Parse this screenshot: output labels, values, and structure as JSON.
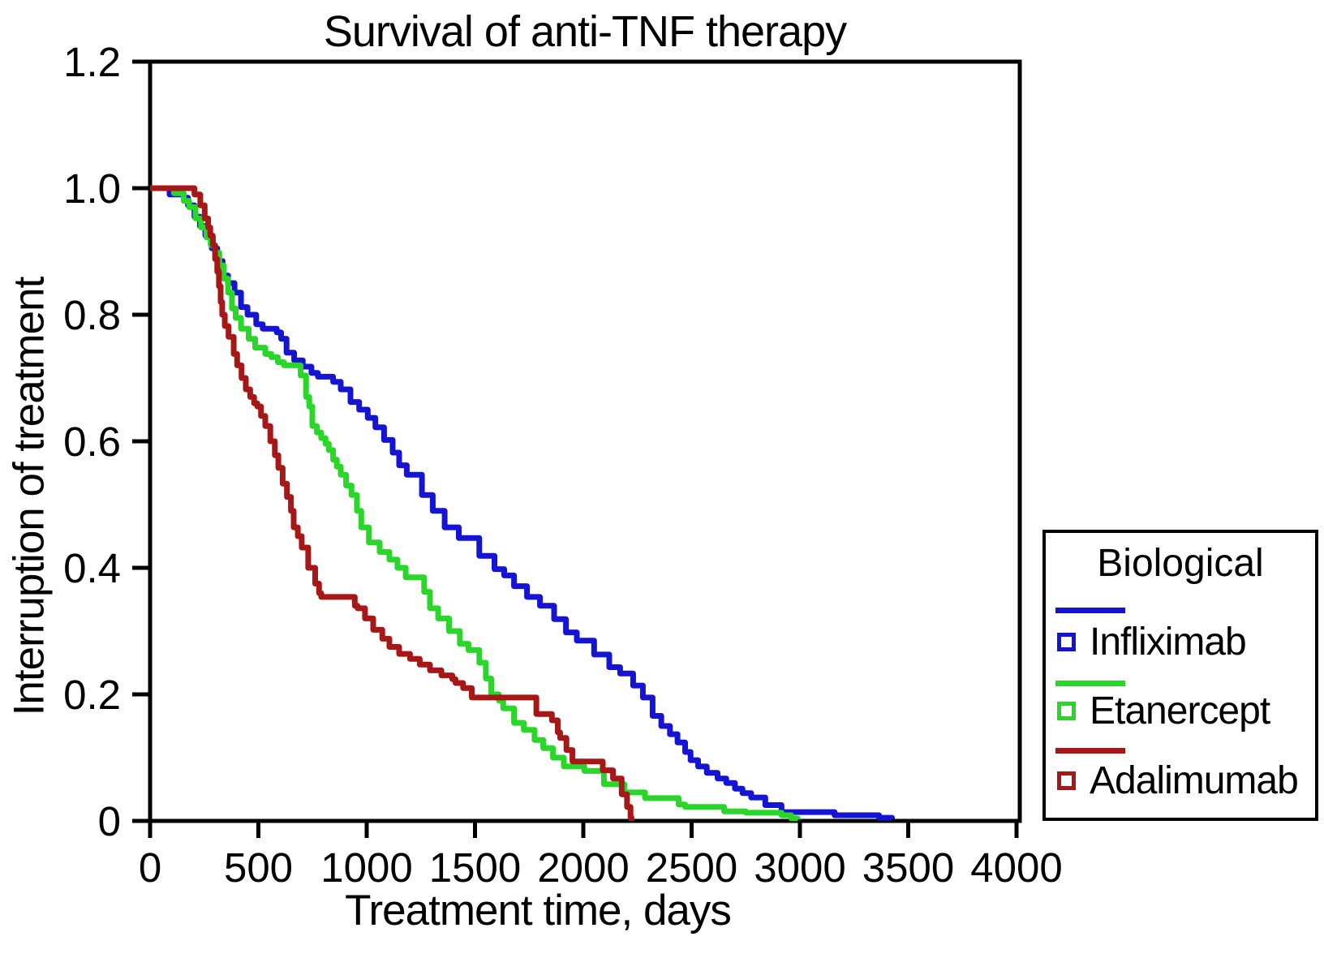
{
  "legend": {
    "title": "Biological",
    "entries": [
      {
        "label": "Infliximab",
        "color": "#1414d2",
        "marker": "open-square"
      },
      {
        "label": "Etanercept",
        "color": "#2ad62a",
        "marker": "open-square"
      },
      {
        "label": "Adalimumab",
        "color": "#a61717",
        "marker": "open-square"
      }
    ]
  },
  "chart_data": {
    "type": "line",
    "subtype": "kaplan-meier-step",
    "title": "Survival of anti-TNF therapy",
    "xlabel": "Treatment time, days",
    "ylabel": "Interruption of treatment",
    "xlim": [
      0,
      4000
    ],
    "ylim": [
      0,
      1.2
    ],
    "grid": false,
    "legend_position": "outside-right-bottom",
    "xticks": [
      0,
      500,
      1000,
      1500,
      2000,
      2500,
      3000,
      3500,
      4000
    ],
    "yticks": [
      {
        "value": 0,
        "label": "0"
      },
      {
        "value": 0.2,
        "label": "0.2"
      },
      {
        "value": 0.4,
        "label": "0.4"
      },
      {
        "value": 0.6,
        "label": "0.6"
      },
      {
        "value": 0.8,
        "label": "0.8"
      },
      {
        "value": 1.0,
        "label": "1.0"
      },
      {
        "value": 1.2,
        "label": "1.2"
      }
    ],
    "series": [
      {
        "name": "Infliximab",
        "color": "#1414d2",
        "points": [
          [
            0,
            1.0
          ],
          [
            90,
            0.99
          ],
          [
            155,
            0.985
          ],
          [
            175,
            0.973
          ],
          [
            205,
            0.955
          ],
          [
            230,
            0.94
          ],
          [
            255,
            0.925
          ],
          [
            285,
            0.905
          ],
          [
            310,
            0.885
          ],
          [
            335,
            0.862
          ],
          [
            360,
            0.85
          ],
          [
            390,
            0.835
          ],
          [
            420,
            0.812
          ],
          [
            450,
            0.8
          ],
          [
            490,
            0.785
          ],
          [
            520,
            0.778
          ],
          [
            585,
            0.772
          ],
          [
            605,
            0.762
          ],
          [
            630,
            0.74
          ],
          [
            665,
            0.728
          ],
          [
            705,
            0.718
          ],
          [
            745,
            0.708
          ],
          [
            775,
            0.702
          ],
          [
            845,
            0.694
          ],
          [
            880,
            0.682
          ],
          [
            925,
            0.662
          ],
          [
            965,
            0.65
          ],
          [
            1005,
            0.637
          ],
          [
            1040,
            0.622
          ],
          [
            1080,
            0.602
          ],
          [
            1120,
            0.582
          ],
          [
            1150,
            0.562
          ],
          [
            1185,
            0.547
          ],
          [
            1255,
            0.515
          ],
          [
            1305,
            0.49
          ],
          [
            1360,
            0.464
          ],
          [
            1425,
            0.447
          ],
          [
            1520,
            0.419
          ],
          [
            1590,
            0.398
          ],
          [
            1635,
            0.388
          ],
          [
            1680,
            0.371
          ],
          [
            1740,
            0.354
          ],
          [
            1800,
            0.34
          ],
          [
            1865,
            0.319
          ],
          [
            1920,
            0.298
          ],
          [
            1970,
            0.285
          ],
          [
            2050,
            0.263
          ],
          [
            2120,
            0.243
          ],
          [
            2170,
            0.233
          ],
          [
            2230,
            0.214
          ],
          [
            2275,
            0.195
          ],
          [
            2320,
            0.166
          ],
          [
            2360,
            0.15
          ],
          [
            2400,
            0.137
          ],
          [
            2435,
            0.124
          ],
          [
            2470,
            0.109
          ],
          [
            2495,
            0.096
          ],
          [
            2530,
            0.086
          ],
          [
            2570,
            0.076
          ],
          [
            2620,
            0.067
          ],
          [
            2660,
            0.06
          ],
          [
            2700,
            0.051
          ],
          [
            2735,
            0.044
          ],
          [
            2775,
            0.037
          ],
          [
            2840,
            0.025
          ],
          [
            2915,
            0.014
          ],
          [
            3160,
            0.009
          ],
          [
            3365,
            0.005
          ],
          [
            3425,
            0.003
          ]
        ]
      },
      {
        "name": "Etanercept",
        "color": "#2ad62a",
        "points": [
          [
            0,
            1.0
          ],
          [
            110,
            0.992
          ],
          [
            155,
            0.98
          ],
          [
            180,
            0.97
          ],
          [
            210,
            0.952
          ],
          [
            235,
            0.938
          ],
          [
            260,
            0.922
          ],
          [
            280,
            0.91
          ],
          [
            300,
            0.898
          ],
          [
            320,
            0.878
          ],
          [
            340,
            0.857
          ],
          [
            360,
            0.835
          ],
          [
            378,
            0.81
          ],
          [
            395,
            0.795
          ],
          [
            420,
            0.778
          ],
          [
            455,
            0.762
          ],
          [
            485,
            0.748
          ],
          [
            532,
            0.738
          ],
          [
            560,
            0.733
          ],
          [
            590,
            0.725
          ],
          [
            618,
            0.72
          ],
          [
            695,
            0.704
          ],
          [
            720,
            0.67
          ],
          [
            735,
            0.655
          ],
          [
            749,
            0.624
          ],
          [
            770,
            0.614
          ],
          [
            790,
            0.605
          ],
          [
            810,
            0.596
          ],
          [
            825,
            0.586
          ],
          [
            845,
            0.571
          ],
          [
            862,
            0.56
          ],
          [
            880,
            0.547
          ],
          [
            905,
            0.53
          ],
          [
            930,
            0.515
          ],
          [
            955,
            0.49
          ],
          [
            975,
            0.464
          ],
          [
            1010,
            0.44
          ],
          [
            1060,
            0.425
          ],
          [
            1105,
            0.413
          ],
          [
            1142,
            0.4
          ],
          [
            1180,
            0.385
          ],
          [
            1265,
            0.362
          ],
          [
            1292,
            0.336
          ],
          [
            1330,
            0.32
          ],
          [
            1380,
            0.3
          ],
          [
            1430,
            0.28
          ],
          [
            1470,
            0.27
          ],
          [
            1520,
            0.25
          ],
          [
            1550,
            0.225
          ],
          [
            1575,
            0.2
          ],
          [
            1610,
            0.19
          ],
          [
            1630,
            0.178
          ],
          [
            1680,
            0.155
          ],
          [
            1725,
            0.144
          ],
          [
            1775,
            0.128
          ],
          [
            1815,
            0.115
          ],
          [
            1860,
            0.1
          ],
          [
            1910,
            0.086
          ],
          [
            2005,
            0.079
          ],
          [
            2095,
            0.058
          ],
          [
            2190,
            0.045
          ],
          [
            2285,
            0.036
          ],
          [
            2440,
            0.026
          ],
          [
            2470,
            0.022
          ],
          [
            2650,
            0.015
          ],
          [
            2750,
            0.013
          ],
          [
            2915,
            0.009
          ],
          [
            2960,
            0.004
          ],
          [
            2990,
            0.002
          ]
        ]
      },
      {
        "name": "Adalimumab",
        "color": "#a61717",
        "points": [
          [
            0,
            1.0
          ],
          [
            205,
            0.99
          ],
          [
            232,
            0.973
          ],
          [
            252,
            0.952
          ],
          [
            268,
            0.938
          ],
          [
            278,
            0.925
          ],
          [
            290,
            0.91
          ],
          [
            300,
            0.888
          ],
          [
            310,
            0.868
          ],
          [
            318,
            0.845
          ],
          [
            326,
            0.82
          ],
          [
            333,
            0.8
          ],
          [
            345,
            0.782
          ],
          [
            362,
            0.765
          ],
          [
            386,
            0.738
          ],
          [
            402,
            0.72
          ],
          [
            422,
            0.7
          ],
          [
            442,
            0.682
          ],
          [
            462,
            0.67
          ],
          [
            480,
            0.66
          ],
          [
            495,
            0.655
          ],
          [
            512,
            0.64
          ],
          [
            532,
            0.624
          ],
          [
            555,
            0.6
          ],
          [
            576,
            0.578
          ],
          [
            592,
            0.558
          ],
          [
            612,
            0.533
          ],
          [
            632,
            0.512
          ],
          [
            650,
            0.49
          ],
          [
            663,
            0.464
          ],
          [
            682,
            0.45
          ],
          [
            700,
            0.432
          ],
          [
            730,
            0.4
          ],
          [
            762,
            0.375
          ],
          [
            780,
            0.36
          ],
          [
            790,
            0.354
          ],
          [
            945,
            0.34
          ],
          [
            958,
            0.336
          ],
          [
            992,
            0.32
          ],
          [
            1030,
            0.302
          ],
          [
            1072,
            0.288
          ],
          [
            1105,
            0.275
          ],
          [
            1150,
            0.264
          ],
          [
            1200,
            0.256
          ],
          [
            1245,
            0.247
          ],
          [
            1292,
            0.238
          ],
          [
            1345,
            0.23
          ],
          [
            1395,
            0.224
          ],
          [
            1410,
            0.218
          ],
          [
            1445,
            0.21
          ],
          [
            1485,
            0.195
          ],
          [
            1783,
            0.169
          ],
          [
            1855,
            0.159
          ],
          [
            1882,
            0.14
          ],
          [
            1893,
            0.131
          ],
          [
            1922,
            0.112
          ],
          [
            1950,
            0.094
          ],
          [
            2090,
            0.08
          ],
          [
            2137,
            0.067
          ],
          [
            2177,
            0.042
          ],
          [
            2202,
            0.022
          ],
          [
            2218,
            0.006
          ],
          [
            2222,
            0.0
          ]
        ]
      }
    ]
  }
}
